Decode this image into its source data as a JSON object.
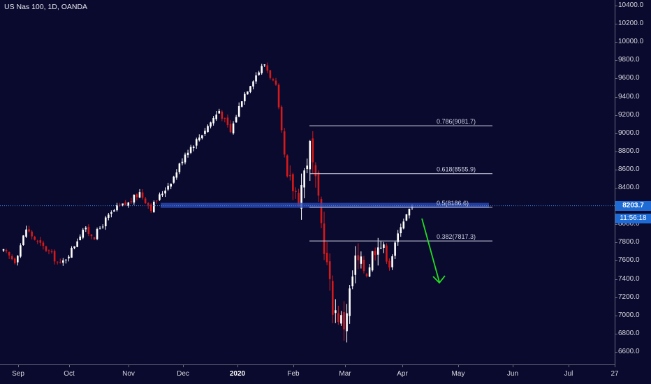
{
  "header": {
    "title": "US Nas 100, 1D, OANDA"
  },
  "price_axis": {
    "labels": [
      "10400.0",
      "10200.0",
      "10000.0",
      "9800.0",
      "9600.0",
      "9400.0",
      "9200.0",
      "9000.0",
      "8800.0",
      "8600.0",
      "8400.0",
      "8000.0",
      "7800.0",
      "7600.0",
      "7400.0",
      "7200.0",
      "7000.0",
      "6800.0",
      "6600.0"
    ],
    "values": [
      10400,
      10200,
      10000,
      9800,
      9600,
      9400,
      9200,
      9000,
      8800,
      8600,
      8400,
      8000,
      7800,
      7600,
      7400,
      7200,
      7000,
      6800,
      6600
    ]
  },
  "time_axis": {
    "labels": [
      "Sep",
      "Oct",
      "Nov",
      "Dec",
      "2020",
      "Feb",
      "Mar",
      "Apr",
      "May",
      "Jun",
      "Jul",
      "27"
    ]
  },
  "badges": {
    "last_price": "8203.7",
    "countdown": "11:56:18"
  },
  "colors": {
    "background": "#0a0a2e",
    "up_candle": "#ffffff",
    "down_candle": "#d61a1a",
    "zone": "#2b4bb8",
    "fib_line": "#cfd3e6",
    "arrow": "#22dd22",
    "price_line": "#3d86e0"
  },
  "chart_data": {
    "type": "candlestick",
    "title": "US Nas 100, 1D, OANDA",
    "symbol": "US Nas 100",
    "interval": "1D",
    "source": "OANDA",
    "ylim": [
      6500,
      10500
    ],
    "last_price": 8203.7,
    "time_marks": [
      "Sep",
      "Oct",
      "Nov",
      "Dec",
      "2020",
      "Feb",
      "Mar",
      "Apr",
      "May",
      "Jun",
      "Jul",
      "27"
    ],
    "fib_levels": [
      {
        "label": "0.786(9081.7)",
        "ratio": 0.786,
        "value": 9081.7
      },
      {
        "label": "0.618(8555.9)",
        "ratio": 0.618,
        "value": 8555.9
      },
      {
        "label": "0.5(8186.6)",
        "ratio": 0.5,
        "value": 8186.6
      },
      {
        "label": "0.382(7817.3)",
        "ratio": 0.382,
        "value": 7817.3
      }
    ],
    "zone": {
      "from": 8180,
      "to": 8235
    },
    "path": [
      {
        "label": "Sep",
        "close": 7700
      },
      {
        "label": "Sep",
        "close": 7600
      },
      {
        "label": "Sep",
        "close": 7950
      },
      {
        "label": "Sep",
        "close": 7800
      },
      {
        "label": "Oct",
        "close": 7700
      },
      {
        "label": "Oct",
        "close": 7550
      },
      {
        "label": "Oct",
        "close": 7720
      },
      {
        "label": "Oct",
        "close": 7950
      },
      {
        "label": "Oct",
        "close": 7870
      },
      {
        "label": "Nov",
        "close": 8050
      },
      {
        "label": "Nov",
        "close": 8180
      },
      {
        "label": "Nov",
        "close": 8230
      },
      {
        "label": "Nov",
        "close": 8350
      },
      {
        "label": "Dec",
        "close": 8180
      },
      {
        "label": "Dec",
        "close": 8350
      },
      {
        "label": "Dec",
        "close": 8520
      },
      {
        "label": "Dec",
        "close": 8780
      },
      {
        "label": "2020",
        "close": 8920
      },
      {
        "label": "2020",
        "close": 9080
      },
      {
        "label": "2020",
        "close": 9250
      },
      {
        "label": "2020",
        "close": 9010
      },
      {
        "label": "2020",
        "close": 9380
      },
      {
        "label": "Feb",
        "close": 9600
      },
      {
        "label": "Feb",
        "close": 9760
      },
      {
        "label": "Feb",
        "close": 9500
      },
      {
        "label": "Feb",
        "close": 8500
      },
      {
        "label": "Mar",
        "close": 8300
      },
      {
        "label": "Mar",
        "close": 8850
      },
      {
        "label": "Mar",
        "close": 8000
      },
      {
        "label": "Mar",
        "close": 7100
      },
      {
        "label": "Mar",
        "close": 6900
      },
      {
        "label": "Mar",
        "close": 7600
      },
      {
        "label": "Mar",
        "close": 7500
      },
      {
        "label": "Apr",
        "close": 7850
      },
      {
        "label": "Apr",
        "close": 7550
      },
      {
        "label": "Apr",
        "close": 8000
      },
      {
        "label": "Apr",
        "close": 8203.7
      }
    ]
  }
}
